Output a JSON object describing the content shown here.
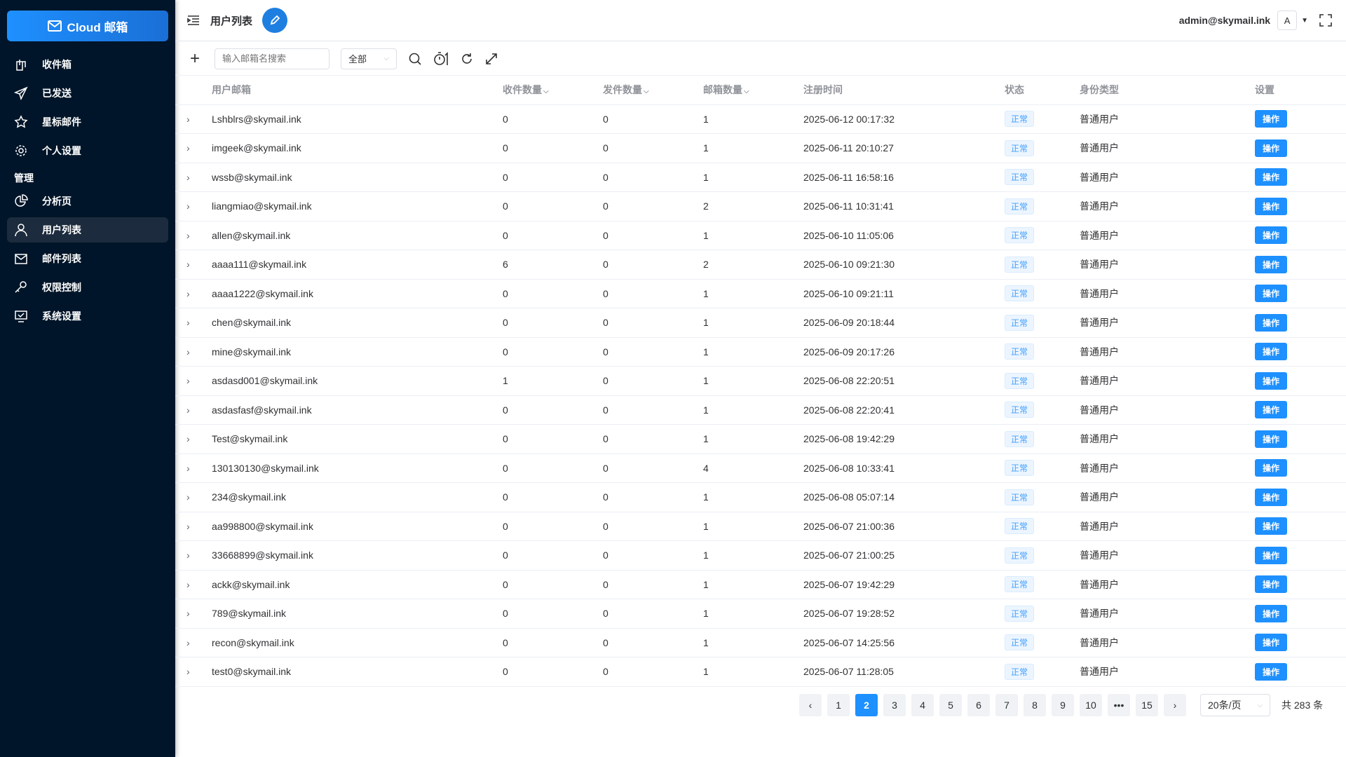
{
  "app": {
    "logo_text": "Cloud 邮箱"
  },
  "sidebar": {
    "items": [
      {
        "label": "收件箱",
        "icon": "inbox-icon"
      },
      {
        "label": "已发送",
        "icon": "send-icon"
      },
      {
        "label": "星标邮件",
        "icon": "star-icon"
      },
      {
        "label": "个人设置",
        "icon": "gear-icon"
      }
    ],
    "group_label": "管理",
    "admin_items": [
      {
        "label": "分析页",
        "icon": "pie-chart-icon"
      },
      {
        "label": "用户列表",
        "icon": "user-icon",
        "active": true
      },
      {
        "label": "邮件列表",
        "icon": "mail-list-icon"
      },
      {
        "label": "权限控制",
        "icon": "key-icon"
      },
      {
        "label": "系统设置",
        "icon": "monitor-settings-icon"
      }
    ]
  },
  "header": {
    "title": "用户列表",
    "user_email": "admin@skymail.ink",
    "avatar_letter": "A"
  },
  "toolbar": {
    "search_placeholder": "输入邮箱名搜索",
    "filter_value": "全部"
  },
  "table": {
    "columns": [
      "用户邮箱",
      "收件数量",
      "发件数量",
      "邮箱数量",
      "注册时间",
      "状态",
      "身份类型",
      "设置"
    ],
    "rows": [
      [
        "Lshblrs@skymail.ink",
        "0",
        "0",
        "1",
        "2025-06-12 00:17:32"
      ],
      [
        "imgeek@skymail.ink",
        "0",
        "0",
        "1",
        "2025-06-11 20:10:27"
      ],
      [
        "wssb@skymail.ink",
        "0",
        "0",
        "1",
        "2025-06-11 16:58:16"
      ],
      [
        "liangmiao@skymail.ink",
        "0",
        "0",
        "2",
        "2025-06-11 10:31:41"
      ],
      [
        "allen@skymail.ink",
        "0",
        "0",
        "1",
        "2025-06-10 11:05:06"
      ],
      [
        "aaaa111@skymail.ink",
        "6",
        "0",
        "2",
        "2025-06-10 09:21:30"
      ],
      [
        "aaaa1222@skymail.ink",
        "0",
        "0",
        "1",
        "2025-06-10 09:21:11"
      ],
      [
        "chen@skymail.ink",
        "0",
        "0",
        "1",
        "2025-06-09 20:18:44"
      ],
      [
        "mine@skymail.ink",
        "0",
        "0",
        "1",
        "2025-06-09 20:17:26"
      ],
      [
        "asdasd001@skymail.ink",
        "1",
        "0",
        "1",
        "2025-06-08 22:20:51"
      ],
      [
        "asdasfasf@skymail.ink",
        "0",
        "0",
        "1",
        "2025-06-08 22:20:41"
      ],
      [
        "Test@skymail.ink",
        "0",
        "0",
        "1",
        "2025-06-08 19:42:29"
      ],
      [
        "130130130@skymail.ink",
        "0",
        "0",
        "4",
        "2025-06-08 10:33:41"
      ],
      [
        "234@skymail.ink",
        "0",
        "0",
        "1",
        "2025-06-08 05:07:14"
      ],
      [
        "aa998800@skymail.ink",
        "0",
        "0",
        "1",
        "2025-06-07 21:00:36"
      ],
      [
        "33668899@skymail.ink",
        "0",
        "0",
        "1",
        "2025-06-07 21:00:25"
      ],
      [
        "ackk@skymail.ink",
        "0",
        "0",
        "1",
        "2025-06-07 19:42:29"
      ],
      [
        "789@skymail.ink",
        "0",
        "0",
        "1",
        "2025-06-07 19:28:52"
      ],
      [
        "recon@skymail.ink",
        "0",
        "0",
        "1",
        "2025-06-07 14:25:56"
      ],
      [
        "test0@skymail.ink",
        "0",
        "0",
        "1",
        "2025-06-07 11:28:05"
      ]
    ],
    "status_label": "正常",
    "role_label": "普通用户",
    "action_label": "操作"
  },
  "pagination": {
    "pages": [
      "1",
      "2",
      "3",
      "4",
      "5",
      "6",
      "7",
      "8",
      "9",
      "10",
      "•••",
      "15"
    ],
    "current": "2",
    "page_size": "20条/页",
    "total": "共 283 条"
  },
  "colors": {
    "sidebar_bg": "#001529",
    "accent": "#1e90ff"
  }
}
